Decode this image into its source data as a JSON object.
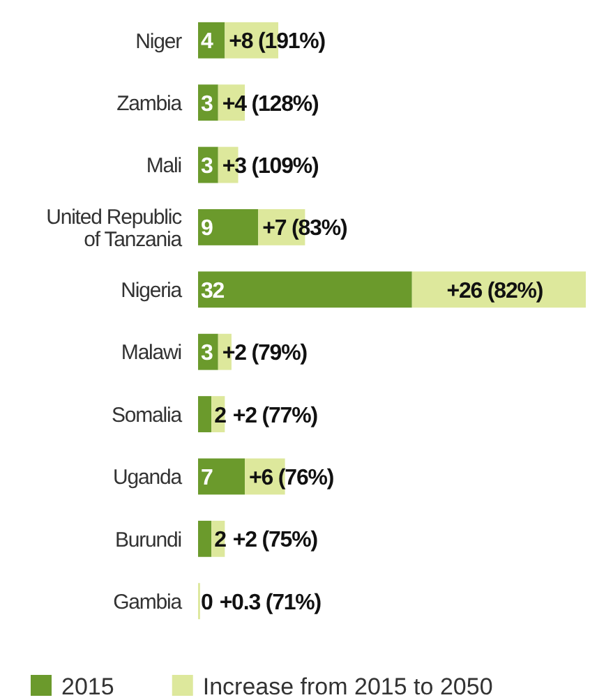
{
  "chart_data": {
    "type": "bar",
    "orientation": "horizontal",
    "stacked": true,
    "legend": "bottom",
    "categories": [
      "Niger",
      "Zambia",
      "Mali",
      "United Republic of Tanzania",
      "Nigeria",
      "Malawi",
      "Somalia",
      "Uganda",
      "Burundi",
      "Gambia"
    ],
    "series": [
      {
        "name": "2015",
        "color": "#6b9a2c",
        "values": [
          4,
          3,
          3,
          9,
          32,
          3,
          2,
          7,
          2,
          0
        ],
        "value_labels": [
          "4",
          "3",
          "3",
          "9",
          "32",
          "3",
          "2",
          "7",
          "2",
          "0"
        ]
      },
      {
        "name": "Increase from 2015 to 2050",
        "color": "#dde89c",
        "values": [
          8,
          4,
          3,
          7,
          26,
          2,
          2,
          6,
          2,
          0.3
        ],
        "value_labels": [
          "+8 (191%)",
          "+4 (128%)",
          "+3 (109%)",
          "+7 (83%)",
          "+26 (82%)",
          "+2 (79%)",
          "+2 (77%)",
          "+6 (76%)",
          "+2 (75%)",
          "+0.3 (71%)"
        ]
      }
    ]
  }
}
